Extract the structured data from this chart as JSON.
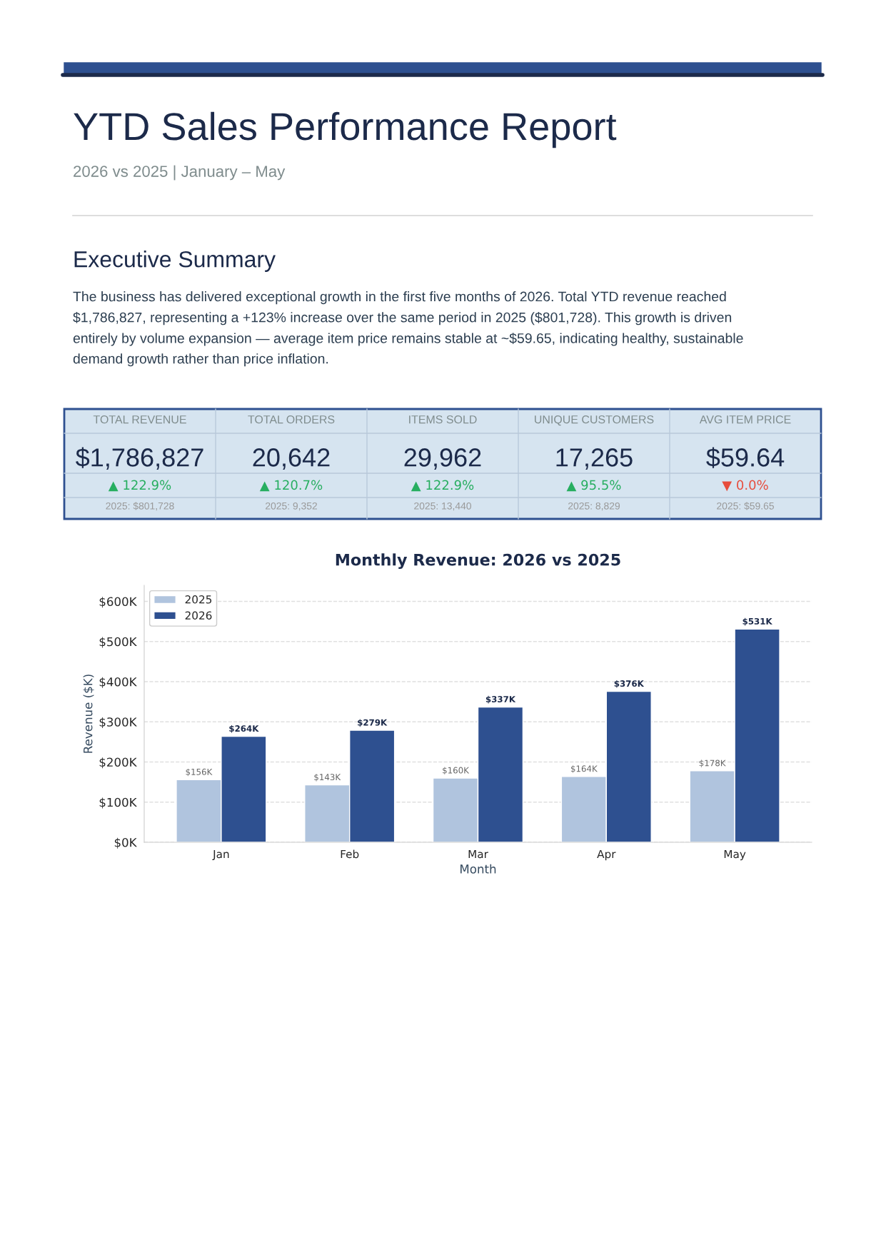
{
  "chart_data": [
    {
      "type": "other",
      "title": "YTD Sales Performance Report",
      "subtitle": "2026 vs 2025 | January – May",
      "annotations": [
        "Executive Summary",
        "The business has delivered exceptional growth in the first five months of 2026. Total YTD revenue reached\n$1,786,827, representing a +123% increase over the same period in 2025 ($801,728). This growth is driven\nentirely by volume expansion — average item price remains stable at ~$59.65, indicating healthy, sustainable\ndemand growth rather than price inflation.",
        "TOTAL REVENUE",
        "$1,786,827",
        "▲ 122.9%",
        "2025: $801,728",
        "TOTAL ORDERS",
        "20,642",
        "▲ 120.7%",
        "2025: 9,352",
        "ITEMS SOLD",
        "29,962",
        "▲ 122.9%",
        "2025: 13,440",
        "UNIQUE CUSTOMERS",
        "17,265",
        "▲ 95.5%",
        "2025: 8,829",
        "AVG ITEM PRICE",
        "$59.64",
        "▼ 0.0%",
        "2025: $59.65"
      ],
      "colors": [
        "#27ae60",
        "#27ae60",
        "#27ae60",
        "#27ae60",
        "#e74c3c"
      ]
    },
    {
      "type": "bar",
      "title": "Monthly Revenue: 2026 vs 2025",
      "xlabel": "Month",
      "ylabel": "Revenue ($K)",
      "categories": [
        "Jan",
        "Feb",
        "Mar",
        "Apr",
        "May"
      ],
      "series": [
        {
          "name": "2025",
          "color": "#b0c4de",
          "values": [
            156,
            143,
            160,
            164,
            178
          ],
          "value_labels": [
            "$156K",
            "$143K",
            "$160K",
            "$164K",
            "$178K"
          ]
        },
        {
          "name": "2026",
          "color": "#2e5090",
          "values": [
            264,
            279,
            337,
            376,
            531
          ],
          "value_labels": [
            "$264K",
            "$279K",
            "$337K",
            "$376K",
            "$531K"
          ]
        }
      ],
      "ylim": [
        0,
        640
      ],
      "yticks": [
        {
          "value": 0,
          "label": "$0K"
        },
        {
          "value": 100,
          "label": "$100K"
        },
        {
          "value": 200,
          "label": "$200K"
        },
        {
          "value": 300,
          "label": "$300K"
        },
        {
          "value": 400,
          "label": "$400K"
        },
        {
          "value": 500,
          "label": "$500K"
        },
        {
          "value": 600,
          "label": "$600K"
        }
      ],
      "grid": "y",
      "legend": "top left"
    }
  ]
}
